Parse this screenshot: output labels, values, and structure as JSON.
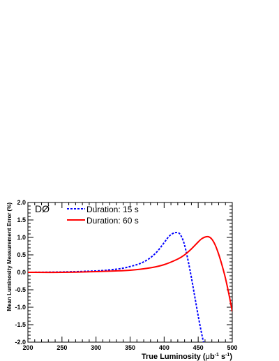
{
  "chart_data": {
    "type": "line",
    "title": "",
    "experiment_label": "DØ",
    "xlabel": {
      "main": "True Luminosity (",
      "mu": "μ",
      "b": "b",
      "b_sup": "-1",
      "s": " s",
      "s_sup": "-1",
      "close": ")"
    },
    "ylabel": "Mean Luminosity Measurement Error (%)",
    "xlim": [
      200,
      500
    ],
    "ylim": [
      -2.0,
      2.0
    ],
    "xticks": [
      200,
      250,
      300,
      350,
      400,
      450,
      500
    ],
    "xtick_labels": [
      "200",
      "250",
      "300",
      "350",
      "400",
      "450",
      "500"
    ],
    "yticks": [
      -2.0,
      -1.5,
      -1.0,
      -0.5,
      0.0,
      0.5,
      1.0,
      1.5,
      2.0
    ],
    "ytick_labels": [
      "-2.0",
      "-1.5",
      "-1.0",
      "-0.5",
      "0.0",
      "0.5",
      "1.0",
      "1.5",
      "2.0"
    ],
    "grid": false,
    "legend_position": "top-left",
    "series": [
      {
        "name": "Duration: 15 s",
        "color": "#0000ff",
        "style": "dashed",
        "x": [
          200,
          250,
          300,
          320,
          340,
          360,
          370,
          380,
          390,
          400,
          405,
          410,
          415,
          418,
          422,
          426,
          430,
          435,
          440,
          445,
          450,
          455,
          458,
          460
        ],
        "y": [
          0.0,
          0.01,
          0.04,
          0.07,
          0.12,
          0.22,
          0.3,
          0.42,
          0.6,
          0.85,
          0.98,
          1.08,
          1.13,
          1.14,
          1.12,
          1.0,
          0.78,
          0.35,
          -0.15,
          -0.7,
          -1.25,
          -1.75,
          -2.0,
          -2.0
        ]
      },
      {
        "name": "Duration: 60 s",
        "color": "#ff0000",
        "style": "solid",
        "x": [
          200,
          250,
          300,
          350,
          380,
          400,
          420,
          430,
          440,
          450,
          455,
          460,
          465,
          470,
          475,
          480,
          485,
          490,
          495,
          500
        ],
        "y": [
          0.0,
          0.0,
          0.02,
          0.06,
          0.13,
          0.22,
          0.38,
          0.5,
          0.67,
          0.87,
          0.96,
          1.01,
          1.02,
          0.95,
          0.78,
          0.52,
          0.2,
          -0.17,
          -0.62,
          -1.12
        ]
      }
    ]
  }
}
